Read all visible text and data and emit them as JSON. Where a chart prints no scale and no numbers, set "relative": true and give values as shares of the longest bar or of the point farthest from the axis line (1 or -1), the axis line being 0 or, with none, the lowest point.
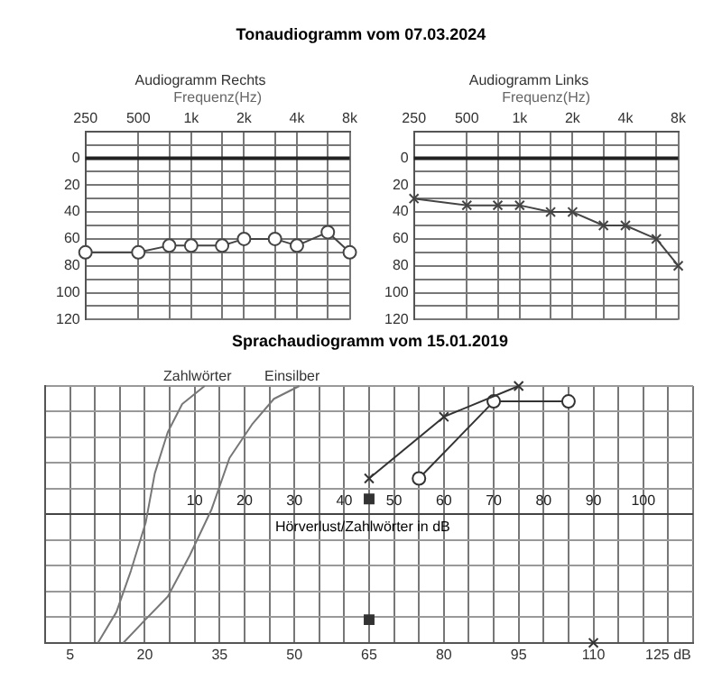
{
  "chart_data": [
    {
      "type": "line",
      "title": "Tonaudiogramm vom 07.03.2024",
      "subtitle": "Audiogramm Rechts",
      "xlabel": "Frequenz(Hz)",
      "log": "x",
      "grid": true,
      "legend": false,
      "marker": "circle",
      "line_style": "solid",
      "x": [
        250,
        500,
        750,
        1000,
        1500,
        2000,
        3000,
        4000,
        6000,
        8000
      ],
      "series": [
        {
          "color": "#444444",
          "values": [
            70,
            70,
            65,
            65,
            65,
            60,
            60,
            65,
            55,
            70
          ]
        }
      ],
      "xlim": [
        250,
        8000
      ],
      "xticks": [
        250,
        500,
        {
          "value": 750,
          "label": null
        },
        {
          "value": 1000,
          "label": "1k"
        },
        {
          "value": 1500,
          "label": null
        },
        {
          "value": 2000,
          "label": "2k"
        },
        {
          "value": 3000,
          "label": null
        },
        {
          "value": 4000,
          "label": "4k"
        },
        {
          "value": 6000,
          "label": null
        },
        {
          "value": 8000,
          "label": "8k"
        }
      ],
      "ylim": [
        120,
        -20
      ],
      "yticks": [
        {
          "value": -10,
          "label": null
        },
        0,
        {
          "value": 10,
          "label": null
        },
        20,
        {
          "value": 30,
          "label": null
        },
        40,
        {
          "value": 50,
          "label": null
        },
        60,
        {
          "value": 70,
          "label": null
        },
        80,
        {
          "value": 90,
          "label": null
        },
        100,
        {
          "value": 110,
          "label": null
        },
        120
      ],
      "ref_lines": [
        {
          "axis": "y",
          "value": 0,
          "color": "#222222"
        }
      ]
    },
    {
      "type": "line",
      "subtitle": "Audiogramm Links",
      "xlabel": "Frequenz(Hz)",
      "log": "x",
      "grid": true,
      "legend": false,
      "marker": "cross",
      "line_style": "solid",
      "x": [
        250,
        500,
        750,
        1000,
        1500,
        2000,
        3000,
        4000,
        6000,
        8000
      ],
      "series": [
        {
          "color": "#444444",
          "values": [
            30,
            35,
            35,
            35,
            40,
            40,
            50,
            50,
            60,
            80
          ]
        }
      ],
      "xlim": [
        250,
        8000
      ],
      "xticks": [
        250,
        500,
        {
          "value": 750,
          "label": null
        },
        {
          "value": 1000,
          "label": "1k"
        },
        {
          "value": 1500,
          "label": null
        },
        {
          "value": 2000,
          "label": "2k"
        },
        {
          "value": 3000,
          "label": null
        },
        {
          "value": 4000,
          "label": "4k"
        },
        {
          "value": 6000,
          "label": null
        },
        {
          "value": 8000,
          "label": "8k"
        }
      ],
      "ylim": [
        120,
        -20
      ],
      "yticks": [
        {
          "value": -10,
          "label": null
        },
        0,
        {
          "value": 10,
          "label": null
        },
        20,
        {
          "value": 30,
          "label": null
        },
        40,
        {
          "value": 50,
          "label": null
        },
        60,
        {
          "value": 70,
          "label": null
        },
        80,
        {
          "value": 90,
          "label": null
        },
        100,
        {
          "value": 110,
          "label": null
        },
        120
      ],
      "ref_lines": [
        {
          "axis": "y",
          "value": 0,
          "color": "#222222"
        }
      ]
    },
    {
      "type": "line",
      "title": "Sprachaudiogramm vom 15.01.2019",
      "x2label": "Hörverlust/Zahlwörter in dB",
      "relative": true,
      "grid": true,
      "legend": false,
      "series": [
        {
          "name": "Zahlwörter",
          "color": "#777777",
          "marker": "none",
          "x": [
            10.6,
            14.3,
            17.2,
            20.2,
            22,
            24.6,
            27.5,
            32
          ],
          "values": [
            0,
            0.12,
            0.28,
            0.47,
            0.66,
            0.82,
            0.93,
            1
          ]
        },
        {
          "name": "Einsilber",
          "color": "#777777",
          "marker": "none",
          "x": [
            15.7,
            20.1,
            24.6,
            29,
            33.4,
            37,
            41.5,
            45.9,
            51
          ],
          "values": [
            0,
            0.09,
            0.18,
            0.34,
            0.52,
            0.72,
            0.85,
            0.95,
            1
          ]
        },
        {
          "color": "#333333",
          "marker": "cross",
          "x": [
            65,
            80,
            95
          ],
          "values": [
            0.64,
            0.88,
            1
          ]
        },
        {
          "color": "#333333",
          "marker": "circle",
          "x": [
            75,
            90,
            105
          ],
          "values": [
            0.64,
            0.94,
            0.94
          ]
        },
        {
          "type": "scatter",
          "color": "#333333",
          "marker": "square",
          "x": [
            65,
            65
          ],
          "values": [
            0.56,
            0.09
          ]
        },
        {
          "type": "scatter",
          "color": "#333333",
          "marker": "cross",
          "x": [
            110
          ],
          "values": [
            0
          ]
        }
      ],
      "xlim": [
        0,
        130
      ],
      "xticks": [
        {
          "value": 0,
          "label": null
        },
        5,
        {
          "value": 10,
          "label": null
        },
        {
          "value": 15,
          "label": null
        },
        20,
        {
          "value": 25,
          "label": null
        },
        {
          "value": 30,
          "label": null
        },
        35,
        {
          "value": 40,
          "label": null
        },
        {
          "value": 45,
          "label": null
        },
        50,
        {
          "value": 55,
          "label": null
        },
        {
          "value": 60,
          "label": null
        },
        65,
        {
          "value": 70,
          "label": null
        },
        {
          "value": 75,
          "label": null
        },
        80,
        {
          "value": 85,
          "label": null
        },
        {
          "value": 90,
          "label": null
        },
        95,
        {
          "value": 100,
          "label": null
        },
        {
          "value": 105,
          "label": null
        },
        110,
        {
          "value": 115,
          "label": null
        },
        {
          "value": 120,
          "label": null
        },
        {
          "value": 125,
          "label": "125 dB"
        },
        {
          "value": 130,
          "label": null
        }
      ],
      "x2lim": [
        -20,
        110
      ],
      "x2ticks": [
        10,
        20,
        30,
        40,
        50,
        60,
        70,
        80,
        90,
        100
      ]
    }
  ]
}
